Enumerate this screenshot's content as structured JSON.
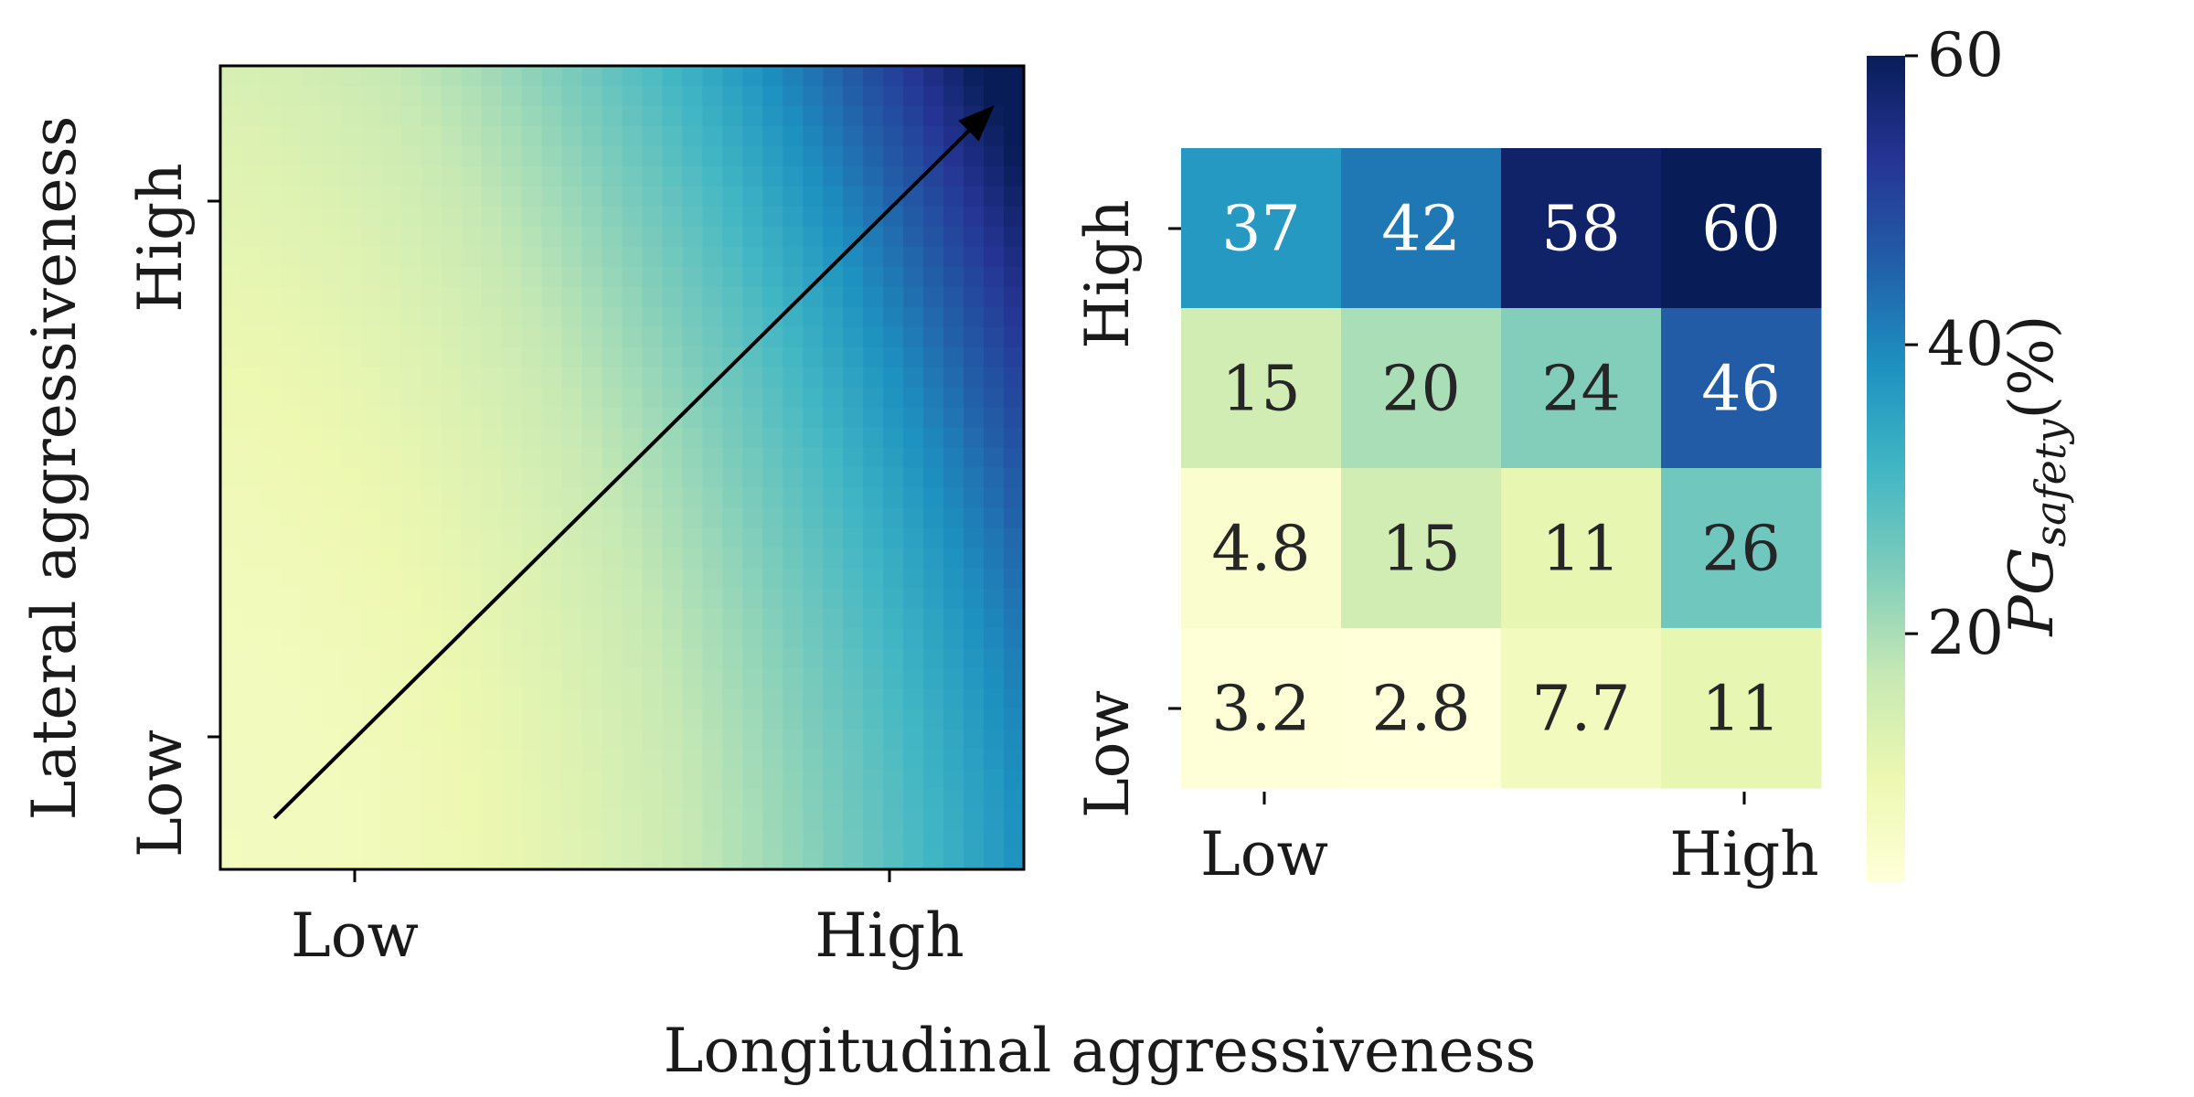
{
  "chart_data": [
    {
      "type": "heatmap",
      "panel": "left",
      "description_visible": "smooth continuous heatmap rising toward high longitudinal / high lateral aggressiveness, with an arrow from low-low to high-high",
      "xlabel": "Longitudinal aggressiveness",
      "ylabel": "Lateral aggressiveness",
      "xticklabels": [
        "Low",
        "High"
      ],
      "yticklabels": [
        "Low",
        "High"
      ],
      "colormap": "YlGnBu",
      "arrow": {
        "from": [
          "Low",
          "Low"
        ],
        "to": [
          "High",
          "High"
        ]
      }
    },
    {
      "type": "heatmap",
      "panel": "right",
      "xticklabels": [
        "Low",
        "High"
      ],
      "yticklabels": [
        "Low",
        "High"
      ],
      "rows_top_to_bottom": [
        [
          "37",
          "42",
          "58",
          "60"
        ],
        [
          "15",
          "20",
          "24",
          "46"
        ],
        [
          "4.8",
          "15",
          "11",
          "26"
        ],
        [
          "3.2",
          "2.8",
          "7.7",
          "11"
        ]
      ],
      "values_top_to_bottom": [
        [
          37,
          42,
          58,
          60
        ],
        [
          15,
          20,
          24,
          46
        ],
        [
          4.8,
          15,
          11,
          26
        ],
        [
          3.2,
          2.8,
          7.7,
          11
        ]
      ],
      "colormap": "YlGnBu",
      "colorbar": {
        "label_main": "PG",
        "label_sub": "safety",
        "label_suffix": "(%)",
        "ticks": [
          "20",
          "40",
          "60"
        ],
        "tick_values": [
          20,
          40,
          60
        ],
        "range": [
          2.8,
          60
        ]
      }
    }
  ]
}
